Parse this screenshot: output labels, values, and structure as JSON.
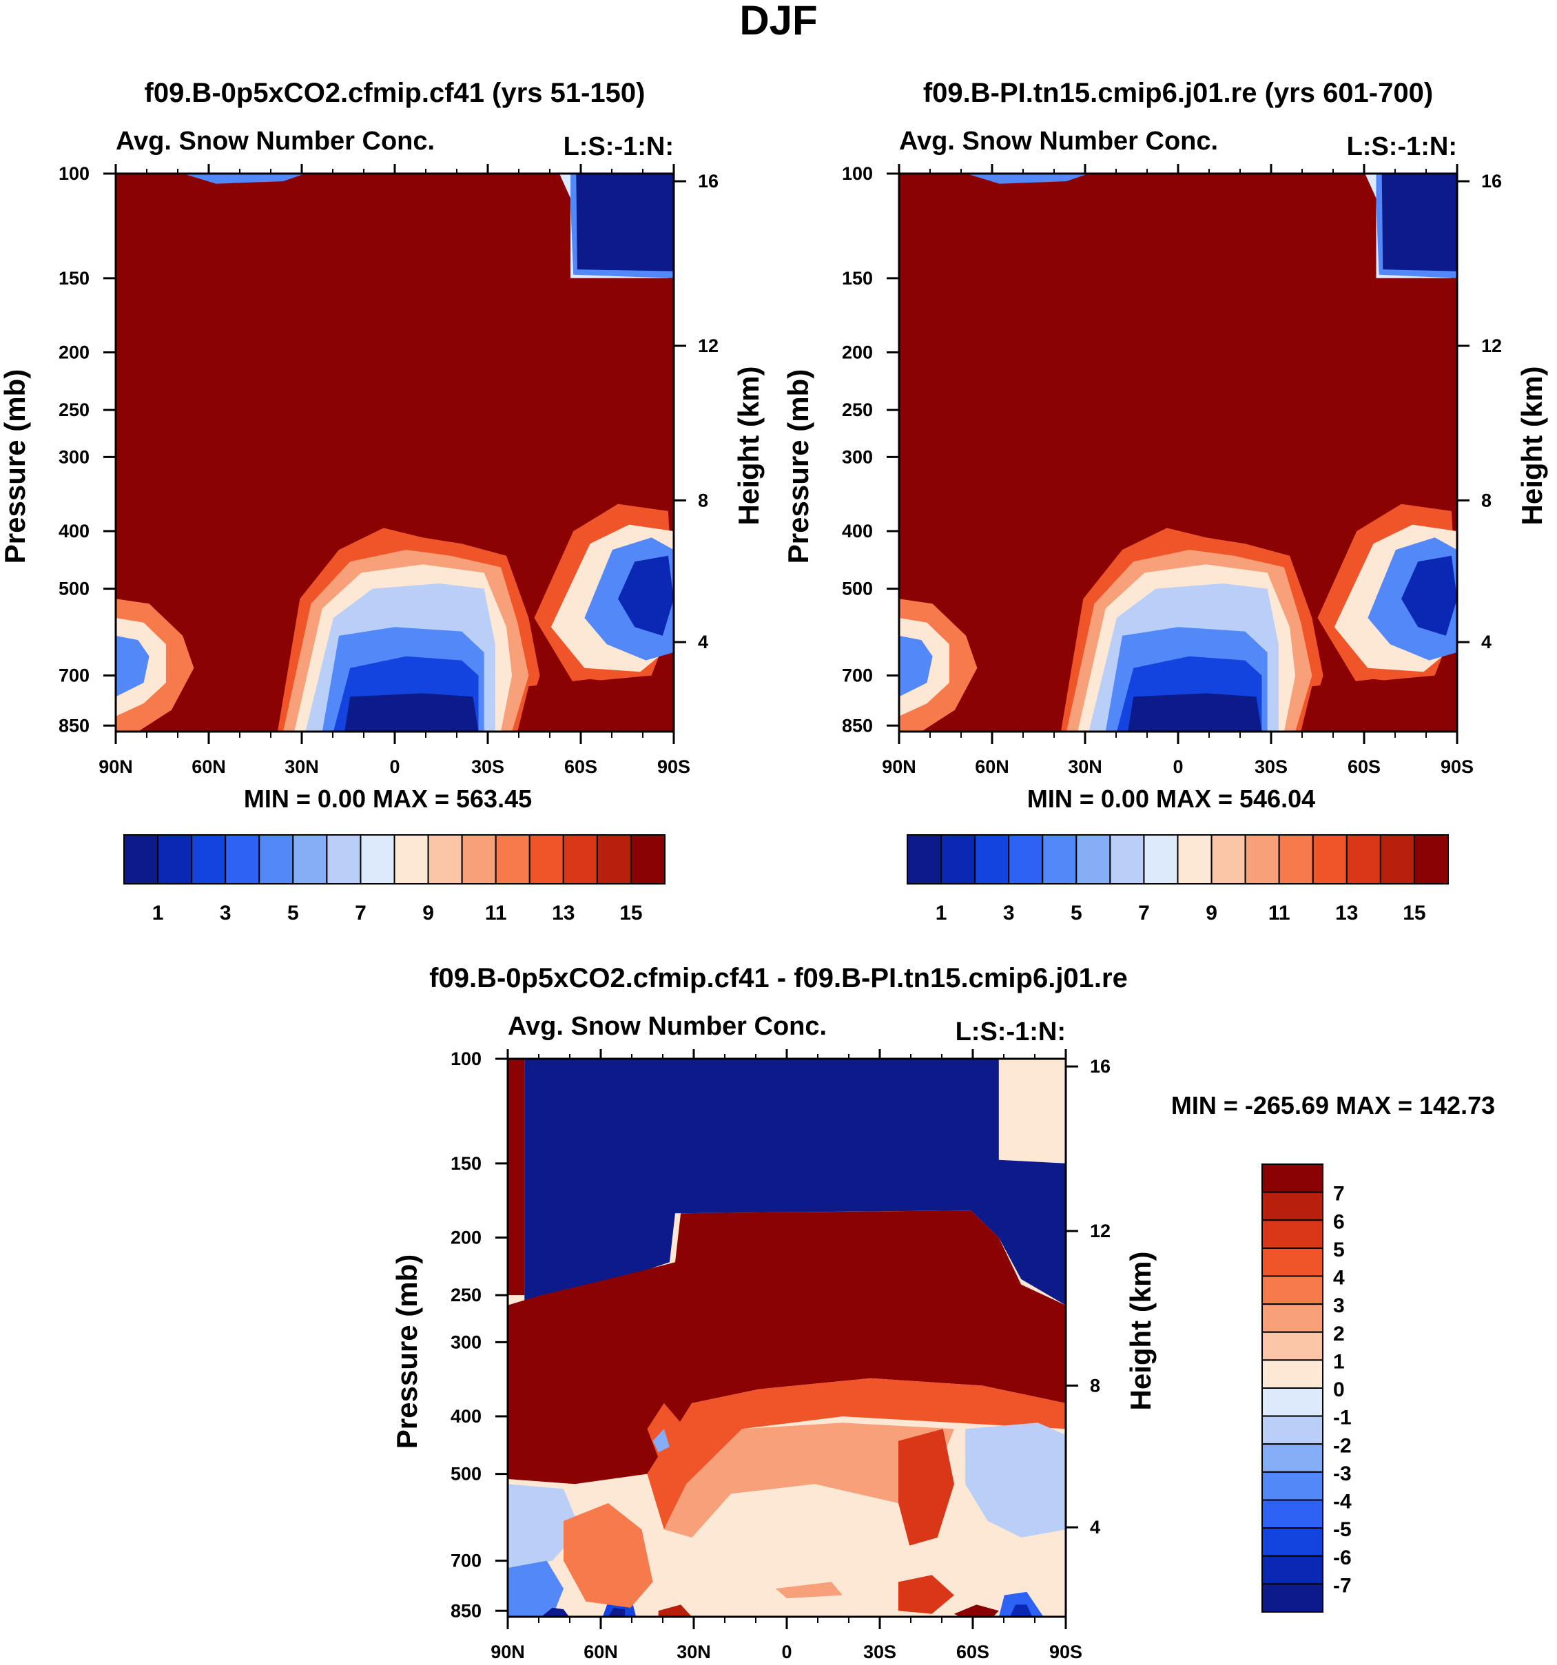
{
  "figure": {
    "title": "DJF",
    "colors": {
      "seq": [
        "#0d1a8a",
        "#0a28b4",
        "#1444e0",
        "#2e62f5",
        "#5288f8",
        "#86aef7",
        "#b9cff8",
        "#dceafb",
        "#fde8d6",
        "#fbc6a8",
        "#f7a079",
        "#f77a4c",
        "#f0552a",
        "#da3618",
        "#b81f0c",
        "#8a0202"
      ],
      "div": [
        "#0d1a8a",
        "#0a28b4",
        "#1444e0",
        "#2e62f5",
        "#5288f8",
        "#86aef7",
        "#b9cff8",
        "#dceafb",
        "#fde8d6",
        "#fbc6a8",
        "#f7a079",
        "#f77a4c",
        "#f0552a",
        "#da3618",
        "#b81f0c",
        "#8a0202"
      ]
    }
  },
  "panels": {
    "p1": {
      "title": "f09.B-0p5xCO2.cfmip.cf41 (yrs 51-150)",
      "subtitle_left": "Avg. Snow Number Conc.",
      "subtitle_right": "L:S:-1:N:",
      "ylabel_left": "Pressure (mb)",
      "ylabel_right": "Height (km)",
      "stats": "MIN =    0.00   MAX = 563.45"
    },
    "p2": {
      "title": "f09.B-PI.tn15.cmip6.j01.re (yrs 601-700)",
      "subtitle_left": "Avg. Snow Number Conc.",
      "subtitle_right": "L:S:-1:N:",
      "ylabel_left": "Pressure (mb)",
      "ylabel_right": "Height (km)",
      "stats": "MIN =    0.00   MAX = 546.04"
    },
    "p3": {
      "title": "f09.B-0p5xCO2.cfmip.cf41 - f09.B-PI.tn15.cmip6.j01.re",
      "subtitle_left": "Avg. Snow Number Conc.",
      "subtitle_right": "L:S:-1:N:",
      "ylabel_left": "Pressure (mb)",
      "ylabel_right": "Height (km)",
      "stats": "MIN = -265.69   MAX = 142.73"
    }
  },
  "chart_data": [
    {
      "type": "heatmap",
      "title": "f09.B-0p5xCO2.cfmip.cf41 (yrs 51-150)",
      "variable": "Avg. Snow Number Conc.",
      "units_label": "L:S:-1:N:",
      "xlabel": "",
      "ylabel": "Pressure (mb)",
      "ylabel_right": "Height (km)",
      "x_ticks": [
        "90N",
        "60N",
        "30N",
        "0",
        "30S",
        "60S",
        "90S"
      ],
      "y_ticks": [
        "100",
        "150",
        "200",
        "250",
        "300",
        "400",
        "500",
        "700",
        "850"
      ],
      "y_ticks_right": [
        "16",
        "12",
        "8",
        "4"
      ],
      "ylim": [
        870,
        100
      ],
      "y_scale": "log",
      "colorbar_labels": [
        "1",
        "3",
        "5",
        "7",
        "9",
        "11",
        "13",
        "15"
      ],
      "colorbar_levels": 16,
      "min": 0.0,
      "max": 563.45
    },
    {
      "type": "heatmap",
      "title": "f09.B-PI.tn15.cmip6.j01.re (yrs 601-700)",
      "variable": "Avg. Snow Number Conc.",
      "units_label": "L:S:-1:N:",
      "xlabel": "",
      "ylabel": "Pressure (mb)",
      "ylabel_right": "Height (km)",
      "x_ticks": [
        "90N",
        "60N",
        "30N",
        "0",
        "30S",
        "60S",
        "90S"
      ],
      "y_ticks": [
        "100",
        "150",
        "200",
        "250",
        "300",
        "400",
        "500",
        "700",
        "850"
      ],
      "y_ticks_right": [
        "16",
        "12",
        "8",
        "4"
      ],
      "ylim": [
        870,
        100
      ],
      "y_scale": "log",
      "colorbar_labels": [
        "1",
        "3",
        "5",
        "7",
        "9",
        "11",
        "13",
        "15"
      ],
      "colorbar_levels": 16,
      "min": 0.0,
      "max": 546.04
    },
    {
      "type": "heatmap",
      "title": "f09.B-0p5xCO2.cfmip.cf41 - f09.B-PI.tn15.cmip6.j01.re",
      "variable": "Avg. Snow Number Conc.",
      "units_label": "L:S:-1:N:",
      "xlabel": "",
      "ylabel": "Pressure (mb)",
      "ylabel_right": "Height (km)",
      "x_ticks": [
        "90N",
        "60N",
        "30N",
        "0",
        "30S",
        "60S",
        "90S"
      ],
      "y_ticks": [
        "100",
        "150",
        "200",
        "250",
        "300",
        "400",
        "500",
        "700",
        "850"
      ],
      "y_ticks_right": [
        "16",
        "12",
        "8",
        "4"
      ],
      "ylim": [
        870,
        100
      ],
      "y_scale": "log",
      "colorbar_labels": [
        "7",
        "6",
        "5",
        "4",
        "3",
        "2",
        "1",
        "0",
        "-1",
        "-2",
        "-3",
        "-4",
        "-5",
        "-6",
        "-7"
      ],
      "colorbar_levels": 16,
      "min": -265.69,
      "max": 142.73
    }
  ]
}
